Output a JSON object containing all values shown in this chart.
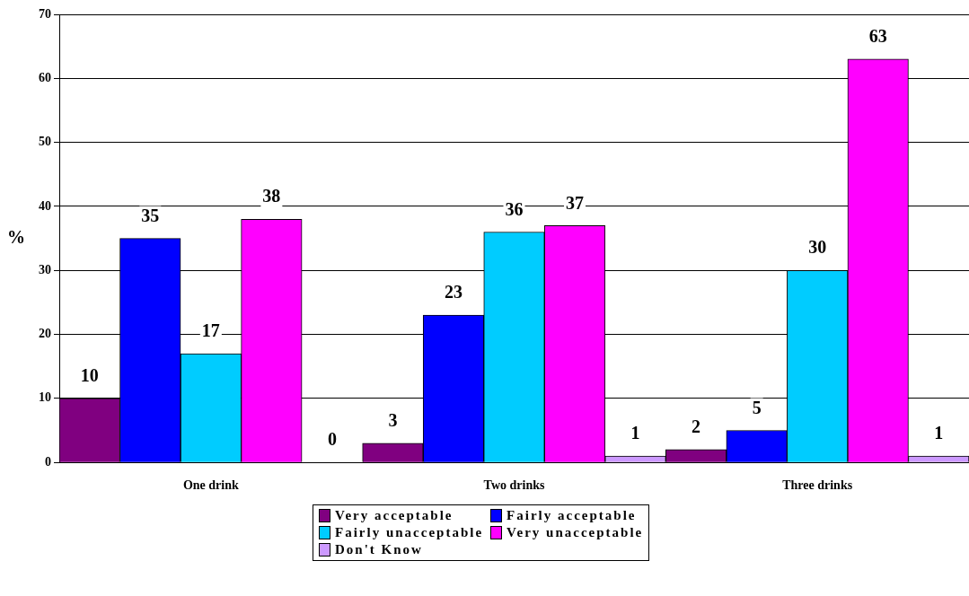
{
  "chart_data": {
    "type": "bar",
    "ylabel": "%",
    "categories": [
      "One drink",
      "Two drinks",
      "Three drinks"
    ],
    "series": [
      {
        "name": "Very acceptable",
        "color": "#800080",
        "values": [
          10,
          3,
          2
        ]
      },
      {
        "name": "Fairly acceptable",
        "color": "#0000ff",
        "values": [
          35,
          23,
          5
        ]
      },
      {
        "name": "Fairly unacceptable",
        "color": "#00ccff",
        "values": [
          17,
          36,
          30
        ]
      },
      {
        "name": "Very unacceptable",
        "color": "#ff00ff",
        "values": [
          38,
          37,
          63
        ]
      },
      {
        "name": "Don't Know",
        "color": "#cc99ff",
        "values": [
          0,
          1,
          1
        ]
      }
    ],
    "ylim": [
      0,
      70
    ],
    "yticks": [
      0,
      10,
      20,
      30,
      40,
      50,
      60,
      70
    ],
    "grid": "y",
    "legend": "bottom",
    "data_labels": true
  }
}
